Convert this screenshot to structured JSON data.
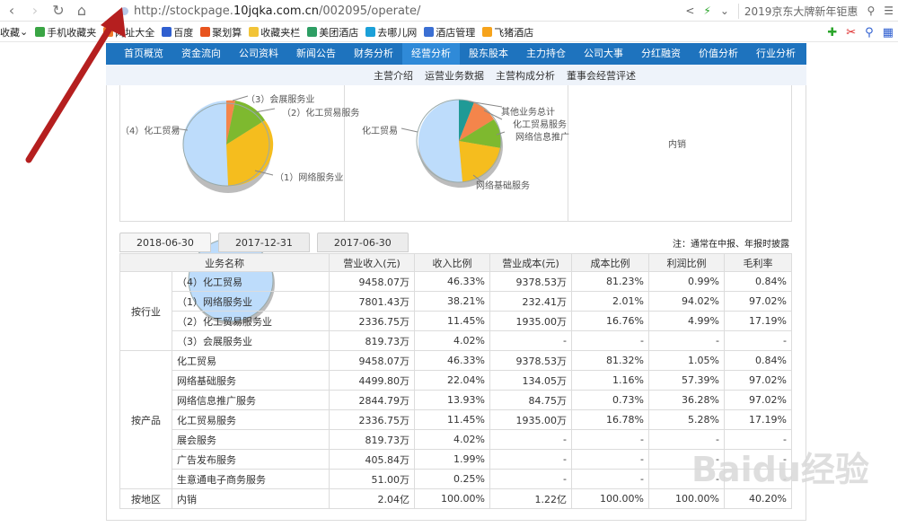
{
  "browser": {
    "url_prefix": "http://stockpage.",
    "url_domain": "10jqka.com.cn",
    "url_path": "/002095/operate/",
    "right_text": "2019京东大牌新年钜惠"
  },
  "bookmarks": {
    "items": [
      "收藏",
      "手机收藏夹",
      "网址大全",
      "百度",
      "聚划算",
      "收藏夹栏",
      "美团酒店",
      "去哪儿网",
      "酒店管理",
      "飞猪酒店"
    ]
  },
  "nav": {
    "items": [
      "首页概览",
      "资金流向",
      "公司资料",
      "新闻公告",
      "财务分析",
      "经营分析",
      "股东股本",
      "主力持仓",
      "公司大事",
      "分红融资",
      "价值分析",
      "行业分析"
    ],
    "active": "经营分析"
  },
  "subnav": {
    "items": [
      "主营介绍",
      "运营业务数据",
      "主营构成分析",
      "董事会经营评述"
    ]
  },
  "pies": {
    "industry": {
      "labels": [
        "（3）会展服务业",
        "（2）化工贸易服务",
        "（4）化工贸易",
        "（1）网络服务业"
      ]
    },
    "product": {
      "labels": [
        "其他业务总计",
        "化工贸易服务",
        "网络信息推广",
        "化工贸易",
        "网络基础服务"
      ]
    },
    "region": {
      "labels": [
        "内销"
      ]
    }
  },
  "tabs": [
    "2018-06-30",
    "2017-12-31",
    "2017-06-30"
  ],
  "note": "注：通常在中报、年报时披露",
  "table": {
    "headers": [
      "业务名称",
      "营业收入(元)",
      "收入比例",
      "营业成本(元)",
      "成本比例",
      "利润比例",
      "毛利率"
    ],
    "groups": [
      {
        "label": "按行业",
        "rows": [
          [
            "（4）化工贸易",
            "9458.07万",
            "46.33%",
            "9378.53万",
            "81.23%",
            "0.99%",
            "0.84%"
          ],
          [
            "（1）网络服务业",
            "7801.43万",
            "38.21%",
            "232.41万",
            "2.01%",
            "94.02%",
            "97.02%"
          ],
          [
            "（2）化工贸易服务业",
            "2336.75万",
            "11.45%",
            "1935.00万",
            "16.76%",
            "4.99%",
            "17.19%"
          ],
          [
            "（3）会展服务业",
            "819.73万",
            "4.02%",
            "-",
            "-",
            "-",
            "-"
          ]
        ]
      },
      {
        "label": "按产品",
        "rows": [
          [
            "化工贸易",
            "9458.07万",
            "46.33%",
            "9378.53万",
            "81.32%",
            "1.05%",
            "0.84%"
          ],
          [
            "网络基础服务",
            "4499.80万",
            "22.04%",
            "134.05万",
            "1.16%",
            "57.39%",
            "97.02%"
          ],
          [
            "网络信息推广服务",
            "2844.79万",
            "13.93%",
            "84.75万",
            "0.73%",
            "36.28%",
            "97.02%"
          ],
          [
            "化工贸易服务",
            "2336.75万",
            "11.45%",
            "1935.00万",
            "16.78%",
            "5.28%",
            "17.19%"
          ],
          [
            "展会服务",
            "819.73万",
            "4.02%",
            "-",
            "-",
            "-",
            "-"
          ],
          [
            "广告发布服务",
            "405.84万",
            "1.99%",
            "-",
            "-",
            "-",
            "-"
          ],
          [
            "生意通电子商务服务",
            "51.00万",
            "0.25%",
            "-",
            "-",
            "-",
            "-"
          ]
        ]
      },
      {
        "label": "按地区",
        "rows": [
          [
            "内销",
            "2.04亿",
            "100.00%",
            "1.22亿",
            "100.00%",
            "100.00%",
            "40.20%"
          ]
        ]
      }
    ]
  },
  "watermark": "Baidu经验"
}
